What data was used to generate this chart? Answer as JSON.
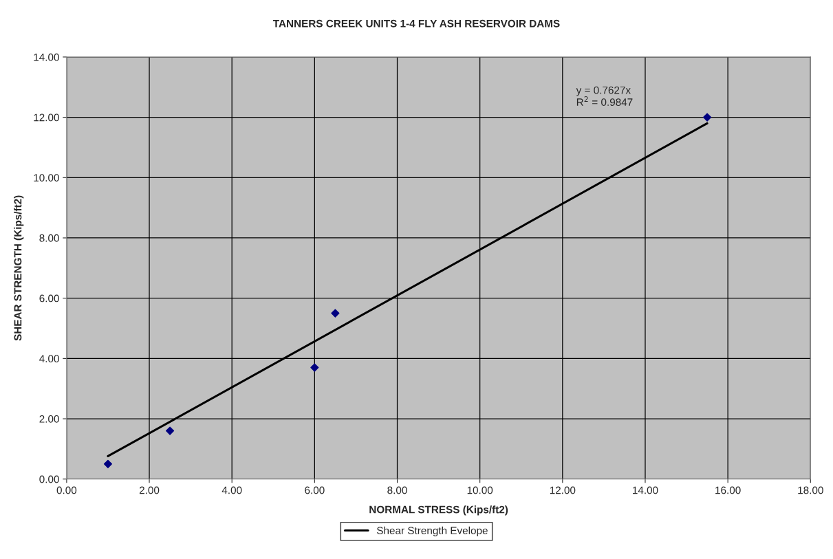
{
  "chart_data": {
    "type": "scatter",
    "title": "TANNERS CREEK UNITS 1-4 FLY ASH RESERVOIR DAMS",
    "xlabel": "NORMAL STRESS (Kips/ft2)",
    "ylabel": "SHEAR STRENGTH (Kips/ft2)",
    "x": [
      1.0,
      2.5,
      6.0,
      6.5,
      15.5
    ],
    "series": [
      {
        "color": "#000080",
        "marker": "diamond",
        "values": [
          0.5,
          1.6,
          3.7,
          5.5,
          12.0
        ]
      },
      {
        "type": "line",
        "name": "Shear Strength Evelope",
        "color": "#000000",
        "marker": "none",
        "line_style": "solid",
        "x": [
          1.0,
          15.5
        ],
        "values": [
          0.76,
          11.8
        ]
      }
    ],
    "annotations": [
      "y = 0.7627x\nR$^{2}$ = 0.9847"
    ],
    "xlim": [
      0,
      18
    ],
    "ylim": [
      0,
      14
    ],
    "xticks": [
      {
        "value": 0,
        "label": "0.00"
      },
      {
        "value": 2,
        "label": "2.00"
      },
      {
        "value": 4,
        "label": "4.00"
      },
      {
        "value": 6,
        "label": "6.00"
      },
      {
        "value": 8,
        "label": "8.00"
      },
      {
        "value": 10,
        "label": "10.00"
      },
      {
        "value": 12,
        "label": "12.00"
      },
      {
        "value": 14,
        "label": "14.00"
      },
      {
        "value": 16,
        "label": "16.00"
      },
      {
        "value": 18,
        "label": "18.00"
      }
    ],
    "yticks": [
      {
        "value": 0,
        "label": "0.00"
      },
      {
        "value": 2,
        "label": "2.00"
      },
      {
        "value": 4,
        "label": "4.00"
      },
      {
        "value": 6,
        "label": "6.00"
      },
      {
        "value": 8,
        "label": "8.00"
      },
      {
        "value": 10,
        "label": "10.00"
      },
      {
        "value": 12,
        "label": "12.00"
      },
      {
        "value": 14,
        "label": "14.00"
      }
    ],
    "grid": true,
    "legend": "bottom"
  }
}
